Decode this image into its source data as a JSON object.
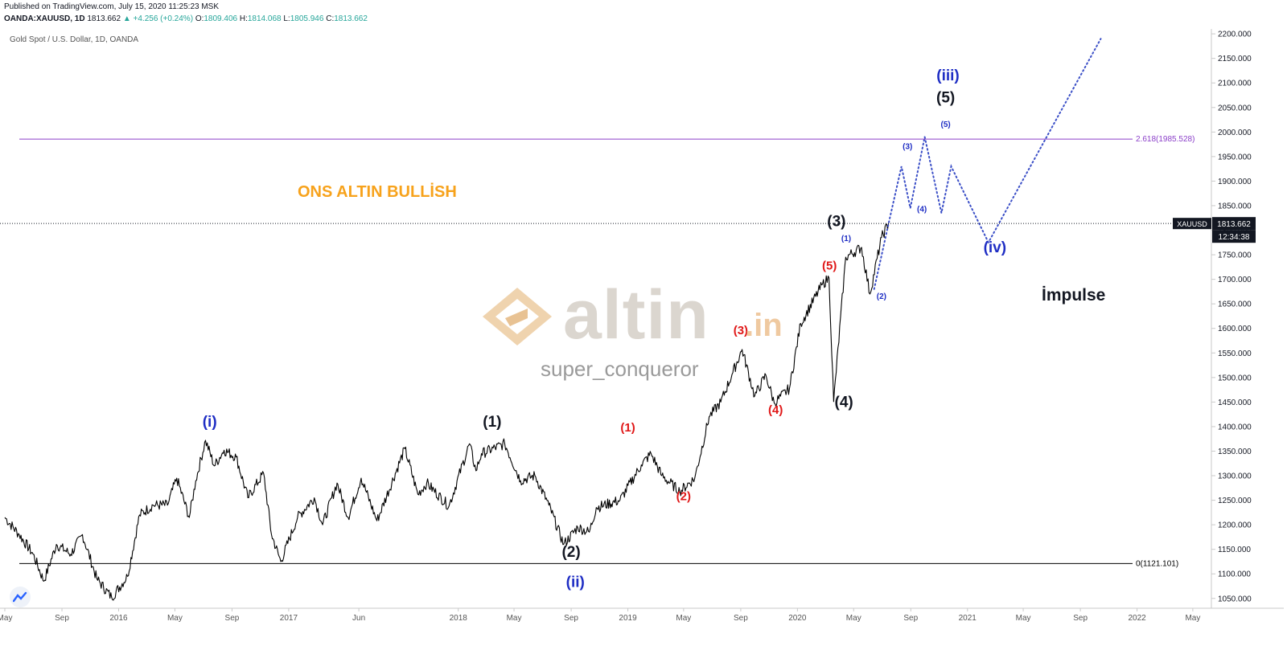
{
  "header": {
    "published": "Published on TradingView.com, July 15, 2020 11:25:23 MSK",
    "symbol": "OANDA:XAUUSD, 1D",
    "last": "1813.662",
    "change": "+4.256 (+0.24%)",
    "o_label": "O:",
    "o_value": "1809.406",
    "h_label": "H:",
    "h_value": "1814.068",
    "l_label": "L:",
    "l_value": "1805.946",
    "c_label": "C:",
    "c_value": "1813.662",
    "up_arrow": "up-triangle-icon"
  },
  "pane_title": "Gold Spot / U.S. Dollar, 1D, OANDA",
  "watermark": {
    "word": "altin",
    "tld": ".in",
    "user": "super_conqueror",
    "logo_icon": "altin-logo-icon"
  },
  "annotations": {
    "bullish": "ONS ALTIN BULLİSH",
    "impulse": "İmpulse"
  },
  "price_tag": {
    "symbol": "XAUUSD",
    "price": "1813.662",
    "countdown": "12:34:38"
  },
  "chart_data": {
    "type": "line",
    "title": "",
    "xlabel": "",
    "ylabel": "",
    "ylim": [
      1030,
      2210
    ],
    "y_ticks": [
      1050,
      1100,
      1150,
      1200,
      1250,
      1300,
      1350,
      1400,
      1450,
      1500,
      1550,
      1600,
      1650,
      1700,
      1750,
      1800,
      1850,
      1900,
      1950,
      2000,
      2050,
      2100,
      2150,
      2200
    ],
    "y_tick_labels": [
      "1050.000",
      "1100.000",
      "1150.000",
      "1200.000",
      "1250.000",
      "1300.000",
      "1350.000",
      "1400.000",
      "1450.000",
      "1500.000",
      "1550.000",
      "1600.000",
      "1650.000",
      "1700.000",
      "1750.000",
      "1800.000",
      "1850.000",
      "1900.000",
      "1950.000",
      "2000.000",
      "2050.000",
      "2100.000",
      "2150.000",
      "2200.000"
    ],
    "x_ticks": [
      "May",
      "Sep",
      "2016",
      "May",
      "Sep",
      "2017",
      "Jun",
      "2018",
      "May",
      "Sep",
      "2019",
      "May",
      "Sep",
      "2020",
      "May",
      "Sep",
      "2021",
      "May",
      "Sep",
      "2022",
      "May"
    ],
    "x_tick_dates": [
      "2015-05-01",
      "2015-09-01",
      "2016-01-01",
      "2016-05-01",
      "2016-09-01",
      "2017-01-01",
      "2017-06-01",
      "2018-01-01",
      "2018-05-01",
      "2018-09-01",
      "2019-01-01",
      "2019-05-01",
      "2019-09-01",
      "2020-01-01",
      "2020-05-01",
      "2020-09-01",
      "2021-01-01",
      "2021-05-01",
      "2021-09-01",
      "2022-01-01",
      "2022-05-01"
    ],
    "x_range": [
      "2015-05-01",
      "2022-06-10"
    ],
    "grid": false,
    "series": [
      {
        "name": "",
        "color": "#000000",
        "points": [
          [
            "2015-05-01",
            1215
          ],
          [
            "2015-06-01",
            1180
          ],
          [
            "2015-07-01",
            1140
          ],
          [
            "2015-07-24",
            1085
          ],
          [
            "2015-08-20",
            1160
          ],
          [
            "2015-09-20",
            1140
          ],
          [
            "2015-10-15",
            1180
          ],
          [
            "2015-11-15",
            1090
          ],
          [
            "2015-12-17",
            1052
          ],
          [
            "2016-01-20",
            1095
          ],
          [
            "2016-02-15",
            1220
          ],
          [
            "2016-03-15",
            1240
          ],
          [
            "2016-04-15",
            1240
          ],
          [
            "2016-05-05",
            1295
          ],
          [
            "2016-06-01",
            1215
          ],
          [
            "2016-06-15",
            1290
          ],
          [
            "2016-07-06",
            1372
          ],
          [
            "2016-07-25",
            1320
          ],
          [
            "2016-08-15",
            1352
          ],
          [
            "2016-09-10",
            1338
          ],
          [
            "2016-10-05",
            1255
          ],
          [
            "2016-11-08",
            1305
          ],
          [
            "2016-11-25",
            1180
          ],
          [
            "2016-12-15",
            1125
          ],
          [
            "2017-01-20",
            1215
          ],
          [
            "2017-02-25",
            1255
          ],
          [
            "2017-03-15",
            1200
          ],
          [
            "2017-04-15",
            1285
          ],
          [
            "2017-05-09",
            1215
          ],
          [
            "2017-06-06",
            1295
          ],
          [
            "2017-07-10",
            1208
          ],
          [
            "2017-09-08",
            1355
          ],
          [
            "2017-10-06",
            1262
          ],
          [
            "2017-10-25",
            1285
          ],
          [
            "2017-12-12",
            1238
          ],
          [
            "2018-01-25",
            1365
          ],
          [
            "2018-02-08",
            1310
          ],
          [
            "2018-02-20",
            1345
          ],
          [
            "2018-04-11",
            1365
          ],
          [
            "2018-05-15",
            1290
          ],
          [
            "2018-06-15",
            1300
          ],
          [
            "2018-07-15",
            1240
          ],
          [
            "2018-08-16",
            1160
          ],
          [
            "2018-09-15",
            1195
          ],
          [
            "2018-10-10",
            1185
          ],
          [
            "2018-10-25",
            1235
          ],
          [
            "2018-12-15",
            1250
          ],
          [
            "2019-01-30",
            1322
          ],
          [
            "2019-02-20",
            1345
          ],
          [
            "2019-03-15",
            1300
          ],
          [
            "2019-04-23",
            1268
          ],
          [
            "2019-05-25",
            1295
          ],
          [
            "2019-06-25",
            1420
          ],
          [
            "2019-07-20",
            1450
          ],
          [
            "2019-08-15",
            1510
          ],
          [
            "2019-09-04",
            1557
          ],
          [
            "2019-10-01",
            1462
          ],
          [
            "2019-10-25",
            1505
          ],
          [
            "2019-11-12",
            1448
          ],
          [
            "2019-12-15",
            1478
          ],
          [
            "2020-01-08",
            1610
          ],
          [
            "2020-02-24",
            1690
          ],
          [
            "2020-03-09",
            1703
          ],
          [
            "2020-03-19",
            1451
          ],
          [
            "2020-04-14",
            1745
          ],
          [
            "2020-05-18",
            1765
          ],
          [
            "2020-06-05",
            1670
          ],
          [
            "2020-06-30",
            1785
          ],
          [
            "2020-07-15",
            1813.662
          ]
        ]
      },
      {
        "name": "",
        "color": "#3b4fc7",
        "dotted": true,
        "points": [
          [
            "2020-06-14",
            1680
          ],
          [
            "2020-07-15",
            1813
          ],
          [
            "2020-08-12",
            1930
          ],
          [
            "2020-08-31",
            1845
          ],
          [
            "2020-10-01",
            1990
          ],
          [
            "2020-11-06",
            1835
          ],
          [
            "2020-11-27",
            1930
          ],
          [
            "2021-02-15",
            1775
          ],
          [
            "2021-10-15",
            2190
          ]
        ]
      }
    ],
    "hlines": [
      {
        "label": "2.618(1985.528)",
        "value": 1985.528,
        "color": "#8b3fc9"
      },
      {
        "label": "0(1121.101)",
        "value": 1121.101,
        "color": "#000000"
      }
    ],
    "current_price": 1813.662,
    "wave_labels": [
      {
        "text": "(i)",
        "date": "2016-07-15",
        "price": 1400,
        "color": "#1f2ec4",
        "size": "large"
      },
      {
        "text": "(1)",
        "date": "2018-03-15",
        "price": 1400,
        "color": "#131722",
        "size": "large"
      },
      {
        "text": "(2)",
        "date": "2018-09-01",
        "price": 1135,
        "color": "#131722",
        "size": "large"
      },
      {
        "text": "(ii)",
        "date": "2018-09-10",
        "price": 1073,
        "color": "#1f2ec4",
        "size": "large"
      },
      {
        "text": "(1)",
        "date": "2019-01-01",
        "price": 1390,
        "color": "#e01818",
        "size": "medium"
      },
      {
        "text": "(2)",
        "date": "2019-05-01",
        "price": 1250,
        "color": "#e01818",
        "size": "medium"
      },
      {
        "text": "(3)",
        "date": "2019-09-01",
        "price": 1588,
        "color": "#e01818",
        "size": "medium"
      },
      {
        "text": "(4)",
        "date": "2019-11-15",
        "price": 1426,
        "color": "#e01818",
        "size": "medium"
      },
      {
        "text": "(5)",
        "date": "2020-03-10",
        "price": 1720,
        "color": "#e01818",
        "size": "medium"
      },
      {
        "text": "(3)",
        "date": "2020-03-25",
        "price": 1808,
        "color": "#131722",
        "size": "large"
      },
      {
        "text": "(4)",
        "date": "2020-04-10",
        "price": 1440,
        "color": "#131722",
        "size": "large"
      },
      {
        "text": "(1)",
        "date": "2020-04-15",
        "price": 1778,
        "color": "#1f2ec4",
        "size": "small"
      },
      {
        "text": "(2)",
        "date": "2020-06-30",
        "price": 1660,
        "color": "#1f2ec4",
        "size": "small"
      },
      {
        "text": "(3)",
        "date": "2020-08-25",
        "price": 1965,
        "color": "#1f2ec4",
        "size": "small"
      },
      {
        "text": "(4)",
        "date": "2020-09-25",
        "price": 1838,
        "color": "#1f2ec4",
        "size": "small"
      },
      {
        "text": "(5)",
        "date": "2020-11-15",
        "price": 2010,
        "color": "#1f2ec4",
        "size": "small"
      },
      {
        "text": "(5)",
        "date": "2020-11-15",
        "price": 2060,
        "color": "#131722",
        "size": "large"
      },
      {
        "text": "(iii)",
        "date": "2020-11-20",
        "price": 2105,
        "color": "#1f2ec4",
        "size": "large"
      },
      {
        "text": "(iv)",
        "date": "2021-03-01",
        "price": 1755,
        "color": "#1f2ec4",
        "size": "large"
      }
    ]
  }
}
